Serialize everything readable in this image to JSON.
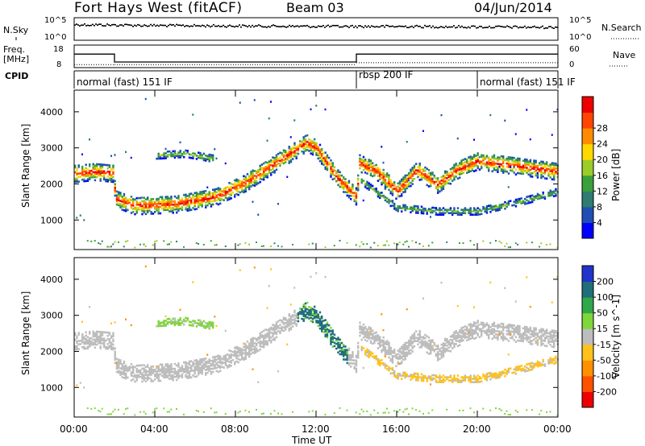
{
  "header": {
    "station": "Fort Hays West (fitACF)",
    "beam": "Beam 03",
    "date": "04/Jun/2014"
  },
  "noise_panel": {
    "left_label": "N.Sky",
    "right_label": "N.Search",
    "left_ticks": [
      "10^5",
      "10^0"
    ],
    "right_ticks": [
      "10^5",
      "10^0"
    ]
  },
  "freq_panel": {
    "left_label_line1": "Freq.",
    "left_label_line2": "[MHz]",
    "right_label": "Nave",
    "left_ticks": [
      "18",
      "8"
    ],
    "right_ticks": [
      "60",
      "0"
    ]
  },
  "cpid_panel": {
    "label": "CPID",
    "segments": [
      {
        "label": "normal (fast) 151 IF",
        "start_hour": 0,
        "end_hour": 14
      },
      {
        "label": "rbsp 200 IF",
        "start_hour": 14,
        "end_hour": 20
      },
      {
        "label": "normal (fast) 151 IF",
        "start_hour": 20,
        "end_hour": 24
      }
    ]
  },
  "x_axis": {
    "label": "Time UT",
    "ticks": [
      "00:00",
      "04:00",
      "08:00",
      "12:00",
      "16:00",
      "20:00",
      "00:00"
    ]
  },
  "power_panel": {
    "ylabel": "Slant Range [km]",
    "yticks": [
      "1000",
      "2000",
      "3000",
      "4000"
    ],
    "colorbar_label": "Power [dB]",
    "colorbar_ticks": [
      "4",
      "8",
      "12",
      "16",
      "20",
      "24",
      "28"
    ],
    "colors": [
      "#0000ff",
      "#1f4fb5",
      "#2e7d70",
      "#3aa13a",
      "#9bcc2a",
      "#ffd800",
      "#ff8c00",
      "#ff4500",
      "#ee0000"
    ]
  },
  "velocity_panel": {
    "ylabel": "Slant Range [km]",
    "yticks": [
      "1000",
      "2000",
      "3000",
      "4000"
    ],
    "colorbar_label": "Velocity [m s^-1]",
    "colorbar_ticks": [
      "200",
      "100",
      "50",
      "15",
      "-15",
      "-50",
      "-100",
      "-200"
    ],
    "colors": [
      "#2233cc",
      "#1f6e7a",
      "#2fa84a",
      "#7fd63a",
      "#bdbdbd",
      "#ffc21a",
      "#ff9000",
      "#ff5000",
      "#ee0000"
    ]
  },
  "chart_data": {
    "type": "heatmap",
    "x_range_hours": [
      0,
      24
    ],
    "y_range_km": [
      180,
      4600
    ],
    "frequency_mhz": [
      {
        "start_hour": 0,
        "end_hour": 2,
        "value": 14
      },
      {
        "start_hour": 2,
        "end_hour": 14,
        "value": 10.5
      },
      {
        "start_hour": 14,
        "end_hour": 24,
        "value": 14
      }
    ],
    "nave": [
      {
        "start_hour": 0,
        "end_hour": 2,
        "value": 8
      },
      {
        "start_hour": 2,
        "end_hour": 14,
        "value": 8
      },
      {
        "start_hour": 14,
        "end_hour": 24,
        "value": 13
      }
    ],
    "noise_sky_log": [
      {
        "hour": 0,
        "value": 3.6
      },
      {
        "hour": 4,
        "value": 3.4
      },
      {
        "hour": 8,
        "value": 3.3
      },
      {
        "hour": 12,
        "value": 3.2
      },
      {
        "hour": 16,
        "value": 3.2
      },
      {
        "hour": 20,
        "value": 3.1
      },
      {
        "hour": 24,
        "value": 3.0
      }
    ],
    "echo_bands": [
      {
        "name": "main",
        "points": [
          [
            0,
            2300
          ],
          [
            1,
            2350
          ],
          [
            1.95,
            2300
          ],
          [
            2,
            1600
          ],
          [
            3,
            1400
          ],
          [
            5,
            1450
          ],
          [
            7,
            1650
          ],
          [
            8.5,
            2050
          ],
          [
            10,
            2600
          ],
          [
            11.5,
            3150
          ],
          [
            12,
            3000
          ],
          [
            13,
            2200
          ],
          [
            14,
            1650
          ],
          [
            14.1,
            2600
          ],
          [
            15,
            2350
          ],
          [
            16,
            1800
          ],
          [
            17,
            2400
          ],
          [
            18,
            2000
          ],
          [
            19,
            2400
          ],
          [
            20,
            2650
          ],
          [
            22,
            2500
          ],
          [
            24,
            2350
          ]
        ],
        "width_km": 300,
        "peak_power_db": 28,
        "velocity": -5
      },
      {
        "name": "lower",
        "points": [
          [
            14.2,
            2100
          ],
          [
            16,
            1350
          ],
          [
            18,
            1250
          ],
          [
            20,
            1250
          ],
          [
            22,
            1500
          ],
          [
            24,
            1800
          ]
        ],
        "width_km": 120,
        "peak_power_db": 12,
        "velocity": -20
      },
      {
        "name": "upper-early",
        "points": [
          [
            4,
            2800
          ],
          [
            5.5,
            2850
          ],
          [
            7,
            2700
          ]
        ],
        "width_km": 120,
        "peak_power_db": 14,
        "velocity": 20
      }
    ],
    "velocity_features": [
      {
        "name": "positive-flow",
        "start_hour": 11,
        "end_hour": 13.5,
        "velocity": 60
      }
    ]
  }
}
